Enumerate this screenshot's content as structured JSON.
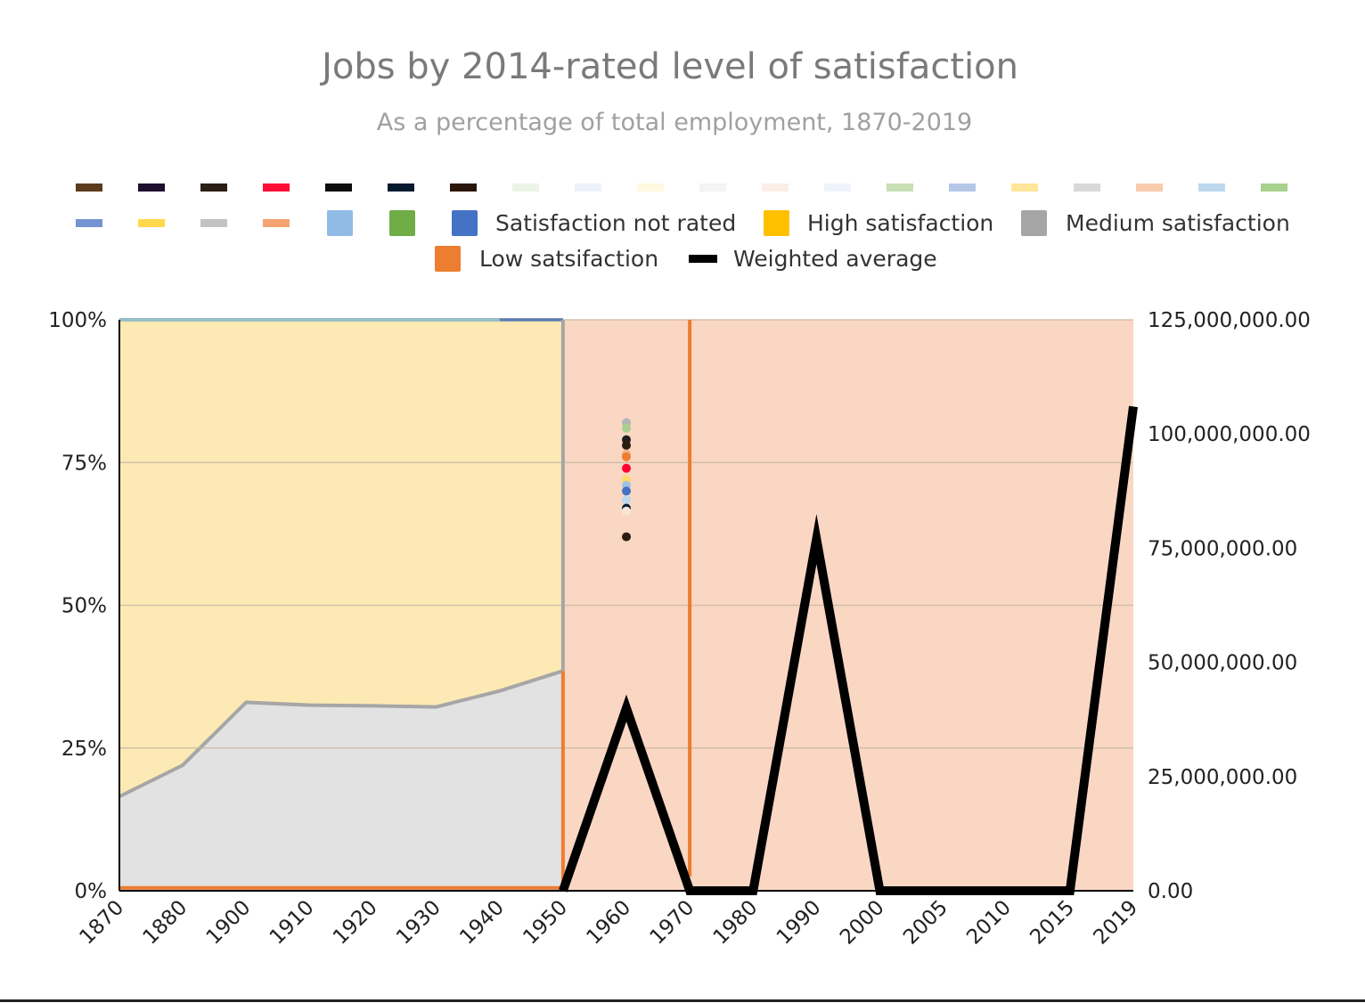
{
  "chart_data": {
    "type": "area",
    "title": "Jobs by 2014-rated level of satisfaction",
    "subtitle": "As a percentage of total employment, 1870-2019",
    "categories": [
      "1870",
      "1880",
      "1900",
      "1910",
      "1920",
      "1930",
      "1940",
      "1950",
      "1960",
      "1970",
      "1980",
      "1990",
      "2000",
      "2005",
      "2010",
      "2015",
      "2019"
    ],
    "y_left": {
      "ylim": [
        0,
        100
      ],
      "ticks": [
        "0%",
        "25%",
        "50%",
        "75%",
        "100%"
      ],
      "tick_values": [
        0,
        25,
        50,
        75,
        100
      ]
    },
    "y_right": {
      "ylim": [
        0,
        125000000
      ],
      "ticks": [
        "0.00",
        "25,000,000.00",
        "50,000,000.00",
        "75,000,000.00",
        "100,000,000.00",
        "125,000,000.00"
      ],
      "tick_values": [
        0,
        25000000,
        50000000,
        75000000,
        100000000,
        125000000
      ]
    },
    "grid": "horizontal",
    "legend_position": "top",
    "areas": [
      {
        "key": "high",
        "color": "#fde9b4",
        "stroke": "#b0b0b0",
        "axis": "left",
        "from": 0,
        "to": 7,
        "values": [
          100,
          100,
          100,
          100,
          100,
          100,
          100,
          100
        ]
      },
      {
        "key": "medium",
        "color": "#e2e2e2",
        "stroke": "#a6a6a6",
        "axis": "left",
        "from": 0,
        "to": 7,
        "values": [
          16.5,
          22,
          33,
          32.5,
          32.4,
          32.2,
          35,
          38.5
        ]
      },
      {
        "key": "low_band",
        "color": "#f9d7c3",
        "axis": "left",
        "from": 7,
        "to": 16,
        "values": [
          100,
          100,
          100,
          100,
          100,
          100,
          100,
          100,
          100,
          100
        ]
      }
    ],
    "top_edges": [
      {
        "color": "#8fc3cf",
        "from": 0,
        "to": 6,
        "value": 100
      },
      {
        "color": "#5b7db8",
        "from": 6,
        "to": 7,
        "value": 100
      }
    ],
    "vertical_lines": [
      {
        "color": "#a6a6a6",
        "at": 7,
        "from": 38.5,
        "to": 100
      },
      {
        "color": "#ed7d31",
        "at": 7,
        "from": 0,
        "to": 38.5
      },
      {
        "color": "#ed7d31",
        "at": 9,
        "from": 2.5,
        "to": 100
      }
    ],
    "baseline": {
      "color": "#ed7d31",
      "from": 0,
      "to": 7,
      "value": 0.5
    },
    "weighted_average": {
      "name": "Weighted average",
      "color": "#000000",
      "axis": "right",
      "values": [
        null,
        null,
        null,
        null,
        null,
        null,
        null,
        0,
        40000000,
        0,
        0,
        77000000,
        0,
        0,
        0,
        0,
        106000000
      ]
    },
    "scatter": {
      "x": 8,
      "points": [
        {
          "y": 82,
          "color": "#b5b5b5"
        },
        {
          "y": 81,
          "color": "#a9d18e"
        },
        {
          "y": 79,
          "color": "#1f1f1f"
        },
        {
          "y": 78,
          "color": "#2b1d0e"
        },
        {
          "y": 76.5,
          "color": "#f4b183"
        },
        {
          "y": 76,
          "color": "#ed7d31"
        },
        {
          "y": 74,
          "color": "#ff0033"
        },
        {
          "y": 72,
          "color": "#ffd966"
        },
        {
          "y": 71,
          "color": "#9dc3e6"
        },
        {
          "y": 70,
          "color": "#4472c4"
        },
        {
          "y": 68.5,
          "color": "#bdd7ee"
        },
        {
          "y": 67,
          "color": "#001f3f"
        },
        {
          "y": 66.5,
          "color": "#fbe5d6"
        },
        {
          "y": 62,
          "color": "#2b1d0e"
        }
      ]
    },
    "legend": {
      "swatch_markers": [
        "#5c3a1e",
        "#1f0f2e",
        "#2a1f14",
        "#ff0d37",
        "#0d0d0d",
        "#061a2e",
        "#2a1608",
        "#ebf4e6",
        "#edf1f9",
        "#fff7e0",
        "#f4f4f4",
        "#fbeee6",
        "#eef3fb",
        "#c6e0b4",
        "#b4c7e7",
        "#ffe699",
        "#d9d9d9",
        "#f8cbad",
        "#bdd7ee",
        "#a9d18e",
        "#7394d0",
        "#ffd84d",
        "#c3c3c3",
        "#f4a470"
      ],
      "square_unlabeled": [
        "#8fbbe4",
        "#70ad47"
      ],
      "entries": [
        {
          "label": "Satisfaction not rated",
          "color": "#4472c4"
        },
        {
          "label": "High satisfaction",
          "color": "#ffc000"
        },
        {
          "label": "Medium satisfaction",
          "color": "#a5a5a5"
        },
        {
          "label": "Low satsifaction",
          "color": "#ed7d31"
        },
        {
          "label": "Weighted average",
          "color": "#000000"
        }
      ]
    }
  }
}
